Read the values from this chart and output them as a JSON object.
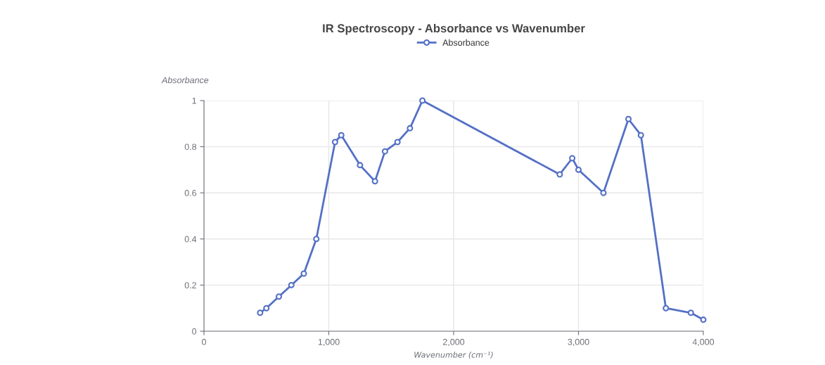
{
  "chart_data": {
    "type": "line",
    "title": "IR Spectroscopy - Absorbance vs Wavenumber",
    "xlabel": "Wavenumber (cm⁻¹)",
    "ylabel": "Absorbance",
    "x": [
      450,
      500,
      600,
      700,
      800,
      900,
      1050,
      1100,
      1250,
      1370,
      1450,
      1550,
      1650,
      1750,
      2850,
      2950,
      3000,
      3200,
      3400,
      3500,
      3700,
      3900,
      4000
    ],
    "series": [
      {
        "name": "Absorbance",
        "color": "#5470c6",
        "values": [
          0.08,
          0.1,
          0.15,
          0.2,
          0.25,
          0.4,
          0.82,
          0.85,
          0.72,
          0.65,
          0.78,
          0.82,
          0.88,
          1.0,
          0.68,
          0.75,
          0.7,
          0.6,
          0.92,
          0.85,
          0.1,
          0.08,
          0.05
        ]
      }
    ],
    "xlim": [
      0,
      4000
    ],
    "xticks": [
      0,
      {
        "value": 1000,
        "label": "1,000"
      },
      {
        "value": 2000,
        "label": "2,000"
      },
      {
        "value": 3000,
        "label": "3,000"
      },
      {
        "value": 4000,
        "label": "4,000"
      }
    ],
    "ylim": [
      0,
      1
    ],
    "yticks": [
      0,
      0.2,
      0.4,
      0.6,
      0.8,
      1
    ],
    "grid": true,
    "legend": "top",
    "marker": "circle",
    "line_style": "solid"
  }
}
